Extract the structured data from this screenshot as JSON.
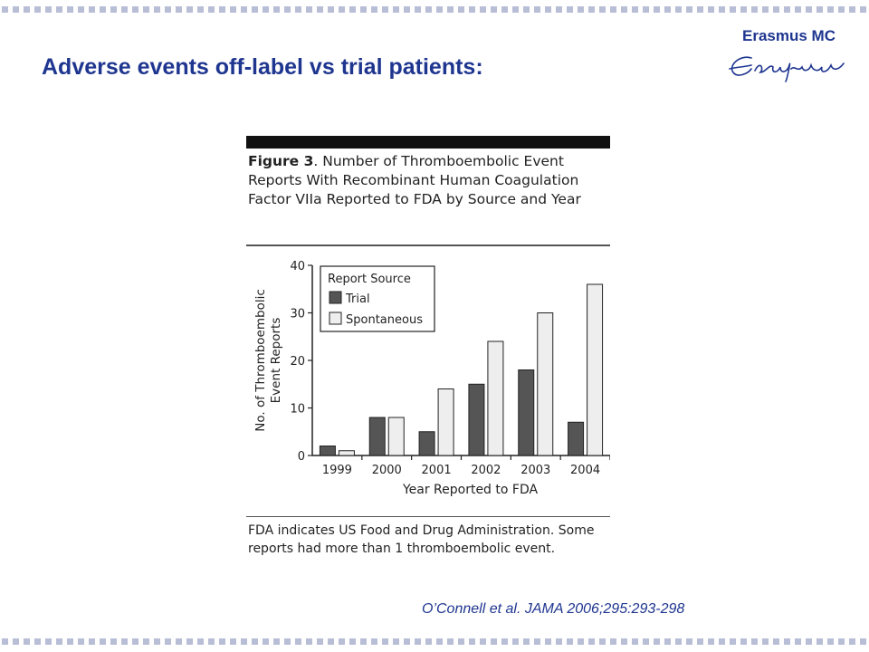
{
  "slide": {
    "title": "Adverse events off-label vs trial patients:",
    "citation": "O’Connell et al. JAMA 2006;295:293-298",
    "title_color": "#1f3690",
    "border_dot_color": "#b8bed6"
  },
  "logo": {
    "text": "Erasmus MC",
    "signature": "Erasmus",
    "color": "#1f3690"
  },
  "figure": {
    "label": "Figure 3",
    "caption": ". Number of Thromboembolic Event Reports With Recombinant Human Coagulation Factor VIIa Reported to FDA by Source and Year",
    "footnote": "FDA indicates US Food and Drug Administration. Some reports had more than 1 thromboembolic event."
  },
  "chart_data": {
    "type": "bar",
    "categories": [
      "1999",
      "2000",
      "2001",
      "2002",
      "2003",
      "2004"
    ],
    "series": [
      {
        "name": "Trial",
        "values": [
          2,
          8,
          5,
          15,
          18,
          7
        ],
        "color": "#555555"
      },
      {
        "name": "Spontaneous",
        "values": [
          1,
          8,
          14,
          24,
          30,
          36
        ],
        "color": "#eeeeee"
      }
    ],
    "xlabel": "Year Reported to FDA",
    "ylabel_lines": [
      "No. of Thromboembolic",
      "Event Reports"
    ],
    "ylim": [
      0,
      40
    ],
    "yticks": [
      0,
      10,
      20,
      30,
      40
    ],
    "legend_title": "Report Source",
    "legend_position": "top-left",
    "grid": false
  }
}
